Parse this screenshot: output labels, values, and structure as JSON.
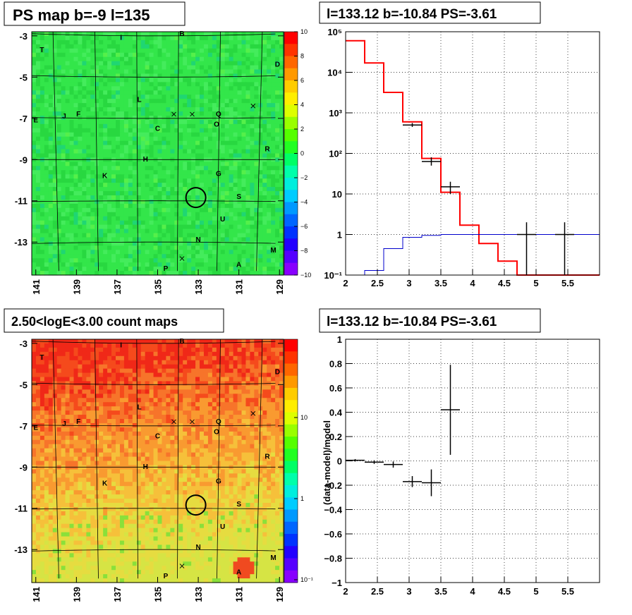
{
  "panels": {
    "ps_map": {
      "title": "PS map b=-9 l=135",
      "y_ticks": [
        "-3",
        "-5",
        "-7",
        "-9",
        "-11",
        "-13"
      ],
      "x_ticks": [
        "141",
        "139",
        "137",
        "135",
        "133",
        "131",
        "129"
      ],
      "colorbar_ticks": [
        "10",
        "8",
        "6",
        "4",
        "2",
        "0",
        "−2",
        "−4",
        "−6",
        "−8",
        "−10"
      ],
      "colors": {
        "base": "#33e04a",
        "alt": "#2fd24a",
        "cool": "#3fd98a"
      }
    },
    "count_map": {
      "title": "2.50<logE<3.00 count maps",
      "y_ticks": [
        "-3",
        "-5",
        "-7",
        "-9",
        "-11",
        "-13"
      ],
      "x_ticks": [
        "141",
        "139",
        "137",
        "135",
        "133",
        "131",
        "129"
      ],
      "colorbar_ticks": [
        "10",
        "1",
        "10⁻¹"
      ],
      "colors": {
        "top": "#f03820",
        "mid": "#f79a2a",
        "low": "#e6e04a"
      }
    },
    "spectrum": {
      "title": "l=133.12 b=-10.84 PS=-3.61"
    },
    "residual": {
      "title": "l=133.12 b=-10.84 PS=-3.61"
    }
  },
  "sources": [
    {
      "label": "T",
      "l": 140.7,
      "b": -3.8
    },
    {
      "label": "I",
      "l": 136.8,
      "b": -3.2
    },
    {
      "label": "B",
      "l": 133.8,
      "b": -3.0
    },
    {
      "label": "D",
      "l": 129.1,
      "b": -4.5
    },
    {
      "label": "L",
      "l": 135.9,
      "b": -6.2
    },
    {
      "label": "J",
      "l": 139.6,
      "b": -7.0
    },
    {
      "label": "F",
      "l": 138.9,
      "b": -6.9
    },
    {
      "label": "E",
      "l": 141.0,
      "b": -7.2
    },
    {
      "label": "C",
      "l": 135.0,
      "b": -7.6
    },
    {
      "label": "Q",
      "l": 132.0,
      "b": -6.9
    },
    {
      "label": "O",
      "l": 132.1,
      "b": -7.4
    },
    {
      "label": "R",
      "l": 129.6,
      "b": -8.6
    },
    {
      "label": "H",
      "l": 135.6,
      "b": -9.1
    },
    {
      "label": "K",
      "l": 137.6,
      "b": -9.9
    },
    {
      "label": "G",
      "l": 132.0,
      "b": -9.8
    },
    {
      "label": "S",
      "l": 131.0,
      "b": -10.9
    },
    {
      "label": "U",
      "l": 131.8,
      "b": -12.0
    },
    {
      "label": "N",
      "l": 133.0,
      "b": -13.0
    },
    {
      "label": "M",
      "l": 129.3,
      "b": -13.5
    },
    {
      "label": "A",
      "l": 131.0,
      "b": -14.2
    },
    {
      "label": "P",
      "l": 134.6,
      "b": -14.4
    }
  ],
  "chart_data": [
    {
      "type": "heatmap",
      "title": "PS map b=-9 l=135",
      "xlabel": "",
      "ylabel": "",
      "xlim": [
        141.2,
        128.8
      ],
      "ylim": [
        -14.6,
        -2.8
      ],
      "x_ticks": [
        141,
        139,
        137,
        135,
        133,
        131,
        129
      ],
      "y_ticks": [
        -3,
        -5,
        -7,
        -9,
        -11,
        -13
      ],
      "z_range": [
        -10,
        10
      ],
      "z_ticks": [
        10,
        8,
        6,
        4,
        2,
        0,
        -2,
        -4,
        -6,
        -8,
        -10
      ],
      "circle": {
        "l": 133.12,
        "b": -10.84
      }
    },
    {
      "type": "line",
      "title": "l=133.12 b=-10.84 PS=-3.61",
      "xlabel": "",
      "ylabel": "",
      "xlim": [
        2.0,
        6.0
      ],
      "ylim": [
        0.1,
        100000
      ],
      "log_y": true,
      "x_ticks": [
        2,
        2.5,
        3,
        3.5,
        4,
        4.5,
        5,
        5.5
      ],
      "series": [
        {
          "color": "#ff0000",
          "edges": [
            2.0,
            2.3,
            2.6,
            2.9,
            3.2,
            3.5,
            3.8,
            4.1,
            4.4,
            4.7,
            5.0,
            6.0
          ],
          "values": [
            60000,
            17000,
            3200,
            600,
            75,
            11,
            1.7,
            0.6,
            0.22,
            0.1,
            0.1
          ]
        },
        {
          "color": "#0000cc",
          "edges": [
            2.0,
            2.3,
            2.6,
            2.9,
            3.2,
            3.5,
            3.8,
            4.1,
            4.4,
            4.7,
            5.0,
            6.0
          ],
          "values": [
            0.1,
            0.13,
            0.45,
            0.85,
            0.95,
            1.0,
            1.0,
            1.0,
            1.0,
            1.0,
            1.0
          ]
        },
        {
          "color": "#000000",
          "points": [
            {
              "x": 3.05,
              "y": 500,
              "xerr": 0.15,
              "ylo": 450,
              "yhi": 560
            },
            {
              "x": 3.35,
              "y": 63,
              "xerr": 0.15,
              "ylo": 50,
              "yhi": 80
            },
            {
              "x": 3.65,
              "y": 15,
              "xerr": 0.15,
              "ylo": 10,
              "yhi": 20
            },
            {
              "x": 4.85,
              "y": 1,
              "xerr": 0.15,
              "ylo": 0.1,
              "yhi": 2.0
            },
            {
              "x": 5.45,
              "y": 1,
              "xerr": 0.15,
              "ylo": 0.1,
              "yhi": 2.0
            }
          ]
        }
      ]
    },
    {
      "type": "heatmap",
      "title": "2.50<logE<3.00 count maps",
      "xlabel": "",
      "ylabel": "",
      "xlim": [
        141.2,
        128.8
      ],
      "ylim": [
        -14.6,
        -2.8
      ],
      "x_ticks": [
        141,
        139,
        137,
        135,
        133,
        131,
        129
      ],
      "y_ticks": [
        -3,
        -5,
        -7,
        -9,
        -11,
        -13
      ],
      "z_log": true,
      "z_ticks": [
        10,
        1,
        0.1
      ],
      "circle": {
        "l": 133.12,
        "b": -10.84
      }
    },
    {
      "type": "scatter",
      "title": "l=133.12 b=-10.84 PS=-3.61",
      "xlabel": "",
      "ylabel": "(data-model)/model",
      "xlim": [
        2.0,
        6.0
      ],
      "ylim": [
        -1.0,
        1.0
      ],
      "x_ticks": [
        2,
        2.5,
        3,
        3.5,
        4,
        4.5,
        5,
        5.5
      ],
      "y_ticks": [
        -1,
        -0.8,
        -0.6,
        -0.4,
        -0.2,
        0,
        0.2,
        0.4,
        0.6,
        0.8,
        1
      ],
      "y_tick_labels": [
        "−1",
        "−0.8",
        "−0.6",
        "−0.4",
        "−0.2",
        "0",
        "0.2",
        "0.4",
        "0.6",
        "0.8",
        "1"
      ],
      "points": [
        {
          "x": 2.15,
          "y": 0.005,
          "xerr": 0.15,
          "yerr": 0.01
        },
        {
          "x": 2.45,
          "y": -0.01,
          "xerr": 0.15,
          "yerr": 0.015
        },
        {
          "x": 2.75,
          "y": -0.03,
          "xerr": 0.15,
          "yerr": 0.025
        },
        {
          "x": 3.05,
          "y": -0.17,
          "xerr": 0.15,
          "yerr": 0.045
        },
        {
          "x": 3.35,
          "y": -0.18,
          "xerr": 0.15,
          "yerr": 0.11
        },
        {
          "x": 3.65,
          "y": 0.42,
          "xerr": 0.15,
          "yerr": 0.37
        }
      ]
    }
  ]
}
